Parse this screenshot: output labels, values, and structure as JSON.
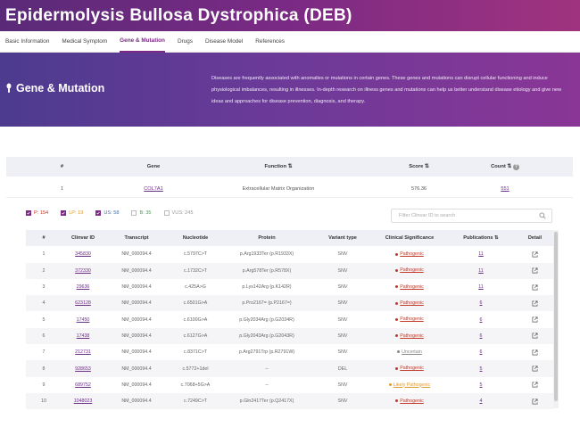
{
  "page_title": "Epidermolysis Bullosa Dystrophica (DEB)",
  "tabs": [
    "Basic Information",
    "Medical Symptom",
    "Gene & Mutation",
    "Drugs",
    "Disease Model",
    "References"
  ],
  "active_tab": "Gene & Mutation",
  "hero": {
    "title": "Gene & Mutation",
    "description": "Diseases are frequently associated with anomalies or mutations in certain genes. These genes and mutations can disrupt cellular functioning and induce physiological imbalances, resulting in illnesses. In-depth research on illness genes and mutations can help us better understand disease etiology and give new ideas and approaches for disease prevention, diagnosis, and therapy."
  },
  "gene_table": {
    "headers": [
      "#",
      "Gene",
      "Function ⇅",
      "Score ⇅",
      "Count ⇅",
      ""
    ],
    "rows": [
      {
        "num": "1",
        "gene": "COL7A1",
        "function": "Extracellular Matrix Organization",
        "score": "576.36",
        "count": "551"
      }
    ]
  },
  "filters": [
    {
      "label": "P: 154",
      "color": "#c0392b",
      "checked": true
    },
    {
      "label": "LP: 19",
      "color": "#e39a2d",
      "checked": true
    },
    {
      "label": "US: 58",
      "color": "#3a6fb0",
      "checked": true
    },
    {
      "label": "B: 35",
      "color": "#4aa055",
      "checked": false
    },
    {
      "label": "VUS: 245",
      "color": "#999999",
      "checked": false
    }
  ],
  "search": {
    "placeholder": "Filter Clinvar ID to search"
  },
  "variant_table": {
    "headers": [
      "#",
      "Clinvar ID",
      "Transcript",
      "Nucleotide",
      "Protein",
      "Variant type",
      "Clinical Significance",
      "Publications ⇅",
      "Detail"
    ],
    "rows": [
      {
        "num": "1",
        "id": "345830",
        "transcript": "NM_000094.4",
        "nucleotide": "c.5797C>T",
        "protein": "p.Arg1933Ter (p.R1933X)",
        "type": "SNV",
        "significance": "Pathogenic",
        "sig_color": "#c0392b",
        "pubs": "11"
      },
      {
        "num": "2",
        "id": "372330",
        "transcript": "NM_000094.4",
        "nucleotide": "c.1732C>T",
        "protein": "p.Arg578Ter (p.R578X)",
        "type": "SNV",
        "significance": "Pathogenic",
        "sig_color": "#c0392b",
        "pubs": "11"
      },
      {
        "num": "3",
        "id": "29636",
        "transcript": "NM_000094.4",
        "nucleotide": "c.425A>G",
        "protein": "p.Lys142Arg (p.K142R)",
        "type": "SNV",
        "significance": "Pathogenic",
        "sig_color": "#c0392b",
        "pubs": "11"
      },
      {
        "num": "4",
        "id": "623128",
        "transcript": "NM_000094.4",
        "nucleotide": "c.6501G>A",
        "protein": "p.Pro2167= (p.P2167=)",
        "type": "SNV",
        "significance": "Pathogenic",
        "sig_color": "#c0392b",
        "pubs": "6"
      },
      {
        "num": "5",
        "id": "17450",
        "transcript": "NM_000094.4",
        "nucleotide": "c.6100G>A",
        "protein": "p.Gly2034Arg (p.G2034R)",
        "type": "SNV",
        "significance": "Pathogenic",
        "sig_color": "#c0392b",
        "pubs": "6"
      },
      {
        "num": "6",
        "id": "17438",
        "transcript": "NM_000094.4",
        "nucleotide": "c.6127G>A",
        "protein": "p.Gly2043Arg (p.G2043R)",
        "type": "SNV",
        "significance": "Pathogenic",
        "sig_color": "#c0392b",
        "pubs": "6"
      },
      {
        "num": "7",
        "id": "212731",
        "transcript": "NM_000094.4",
        "nucleotide": "c.8371C>T",
        "protein": "p.Arg2791Trp (p.R2791W)",
        "type": "SNV",
        "significance": "Uncertain",
        "sig_color": "#888888",
        "pubs": "6"
      },
      {
        "num": "8",
        "id": "928653",
        "transcript": "NM_000094.4",
        "nucleotide": "c.5772+1del",
        "protein": "--",
        "type": "DEL",
        "significance": "Pathogenic",
        "sig_color": "#c0392b",
        "pubs": "5"
      },
      {
        "num": "9",
        "id": "689752",
        "transcript": "NM_000094.4",
        "nucleotide": "c.7068+5G>A",
        "protein": "--",
        "type": "SNV",
        "significance": "Likely Pathogenic",
        "sig_color": "#e39a2d",
        "pubs": "5"
      },
      {
        "num": "10",
        "id": "1048023",
        "transcript": "NM_000094.4",
        "nucleotide": "c.7249C>T",
        "protein": "p.Gln2417Ter (p.Q2417X)",
        "type": "SNV",
        "significance": "Pathogenic",
        "sig_color": "#c0392b",
        "pubs": "4"
      }
    ]
  },
  "colors": {
    "brand": "#7b2a84",
    "link": "#6b2c86"
  }
}
